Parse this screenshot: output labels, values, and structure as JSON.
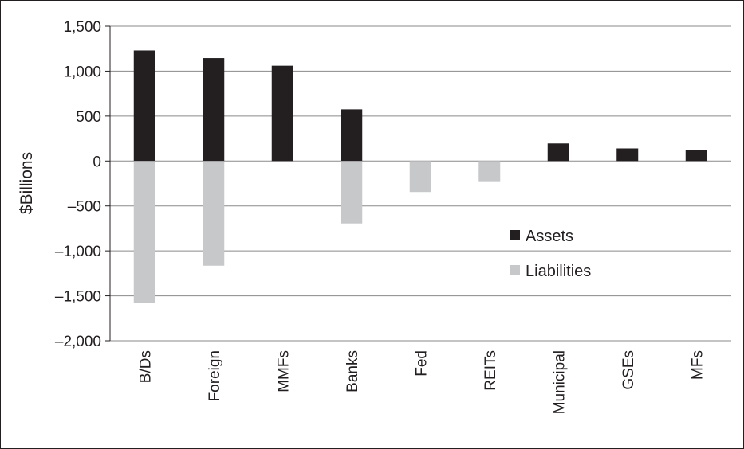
{
  "chart_data": {
    "type": "bar",
    "categories": [
      "B/Ds",
      "Foreign",
      "MMFs",
      "Banks",
      "Fed",
      "REITs",
      "Municipal",
      "GSEs",
      "MFs"
    ],
    "series": [
      {
        "name": "Assets",
        "color": "#231f20",
        "values": [
          1230,
          1145,
          1060,
          575,
          0,
          0,
          195,
          140,
          125
        ]
      },
      {
        "name": "Liabilities",
        "color": "#c7c8ca",
        "values": [
          -1580,
          -1165,
          0,
          -695,
          -345,
          -225,
          0,
          0,
          0
        ]
      }
    ],
    "title": "",
    "xlabel": "",
    "ylabel": "$Billions",
    "ylim": [
      -2000,
      1500
    ],
    "yticks": [
      1500,
      1000,
      500,
      0,
      -500,
      -1000,
      -1500,
      -2000
    ],
    "ytick_labels": [
      "1,500",
      "1,000",
      "500",
      "0",
      "–500",
      "–1,000",
      "–1,500",
      "–2,000"
    ],
    "grid": true,
    "legend_position": "right"
  }
}
